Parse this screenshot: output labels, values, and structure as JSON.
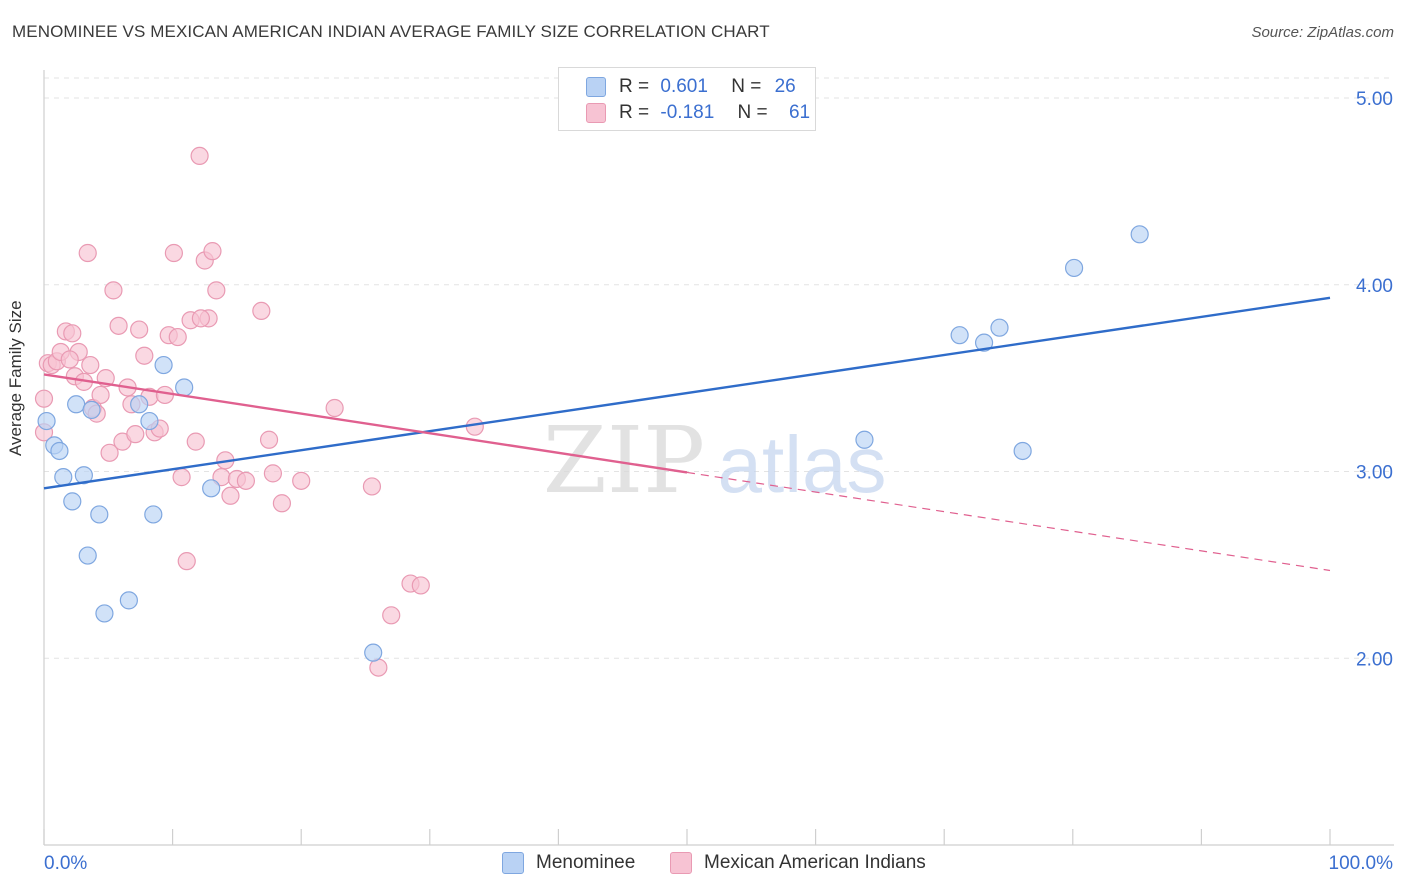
{
  "title": "MENOMINEE VS MEXICAN AMERICAN INDIAN AVERAGE FAMILY SIZE CORRELATION CHART",
  "source": "Source: ZipAtlas.com",
  "watermark": {
    "zip": "ZIP",
    "atlas": "atlas"
  },
  "colors": {
    "menominee_fill": "#b9d2f4",
    "menominee_stroke": "#7fa7e0",
    "menominee_line": "#2f6cc9",
    "mexican_fill": "#f7c3d3",
    "mexican_stroke": "#e99ab3",
    "mexican_line": "#e0608f",
    "tick_label": "#3b6fd0",
    "grid": "#e3e3e3"
  },
  "legend_top": {
    "rows": [
      {
        "r_label": "R =",
        "r_value": "0.601",
        "n_label": "N =",
        "n_value": "26"
      },
      {
        "r_label": "R =",
        "r_value": "-0.181",
        "n_label": "N =",
        "n_value": "61"
      }
    ]
  },
  "legend_bottom": [
    "Menominee",
    "Mexican American Indians"
  ],
  "chart_data": {
    "type": "scatter",
    "xlabel": "",
    "ylabel": "Average Family Size",
    "xlim": [
      0,
      100
    ],
    "ylim": [
      1.0,
      5.15
    ],
    "x_tick_labels": [
      "0.0%",
      "100.0%"
    ],
    "y_ticks": [
      2.0,
      3.0,
      4.0,
      5.0
    ],
    "y_tick_labels": [
      "2.00",
      "3.00",
      "4.00",
      "5.00"
    ],
    "grid": true,
    "series": [
      {
        "name": "Menominee",
        "trend": {
          "x0": 0,
          "y0": 2.91,
          "x1": 100,
          "y1": 3.93,
          "dashed_from": null
        },
        "points": [
          [
            0.2,
            3.27
          ],
          [
            0.8,
            3.14
          ],
          [
            1.2,
            3.11
          ],
          [
            1.5,
            2.97
          ],
          [
            2.2,
            2.84
          ],
          [
            2.5,
            3.36
          ],
          [
            3.1,
            2.98
          ],
          [
            3.4,
            2.55
          ],
          [
            3.7,
            3.33
          ],
          [
            4.3,
            2.77
          ],
          [
            4.7,
            2.24
          ],
          [
            6.6,
            2.31
          ],
          [
            7.4,
            3.36
          ],
          [
            8.2,
            3.27
          ],
          [
            8.5,
            2.77
          ],
          [
            9.3,
            3.57
          ],
          [
            10.9,
            3.45
          ],
          [
            13.0,
            2.91
          ],
          [
            25.6,
            2.03
          ],
          [
            63.8,
            3.17
          ],
          [
            71.2,
            3.73
          ],
          [
            73.1,
            3.69
          ],
          [
            74.3,
            3.77
          ],
          [
            76.1,
            3.11
          ],
          [
            80.1,
            4.09
          ],
          [
            85.2,
            4.27
          ]
        ]
      },
      {
        "name": "Mexican American Indians",
        "trend": {
          "x0": 0,
          "y0": 3.52,
          "x1": 100,
          "y1": 2.47,
          "dashed_from": 50
        },
        "points": [
          [
            0.0,
            3.21
          ],
          [
            0.0,
            3.39
          ],
          [
            0.3,
            3.58
          ],
          [
            0.6,
            3.57
          ],
          [
            1.0,
            3.59
          ],
          [
            1.3,
            3.64
          ],
          [
            1.7,
            3.75
          ],
          [
            2.2,
            3.74
          ],
          [
            2.4,
            3.51
          ],
          [
            2.7,
            3.64
          ],
          [
            3.1,
            3.48
          ],
          [
            3.4,
            4.17
          ],
          [
            3.6,
            3.57
          ],
          [
            3.8,
            3.34
          ],
          [
            4.1,
            3.31
          ],
          [
            4.4,
            3.41
          ],
          [
            4.8,
            3.5
          ],
          [
            5.1,
            3.1
          ],
          [
            5.4,
            3.97
          ],
          [
            5.8,
            3.78
          ],
          [
            6.1,
            3.16
          ],
          [
            6.5,
            3.45
          ],
          [
            6.8,
            3.36
          ],
          [
            7.1,
            3.2
          ],
          [
            7.4,
            3.76
          ],
          [
            7.8,
            3.62
          ],
          [
            8.2,
            3.4
          ],
          [
            8.6,
            3.21
          ],
          [
            9.0,
            3.23
          ],
          [
            9.4,
            3.41
          ],
          [
            9.7,
            3.73
          ],
          [
            10.1,
            4.17
          ],
          [
            10.4,
            3.72
          ],
          [
            10.7,
            2.97
          ],
          [
            11.1,
            2.52
          ],
          [
            11.4,
            3.81
          ],
          [
            11.8,
            3.16
          ],
          [
            12.1,
            4.69
          ],
          [
            12.5,
            4.13
          ],
          [
            12.8,
            3.82
          ],
          [
            13.1,
            4.18
          ],
          [
            13.4,
            3.97
          ],
          [
            13.8,
            2.97
          ],
          [
            14.1,
            3.06
          ],
          [
            14.5,
            2.87
          ],
          [
            15.0,
            2.96
          ],
          [
            15.7,
            2.95
          ],
          [
            16.9,
            3.86
          ],
          [
            17.5,
            3.17
          ],
          [
            17.8,
            2.99
          ],
          [
            18.5,
            2.83
          ],
          [
            20.0,
            2.95
          ],
          [
            22.6,
            3.34
          ],
          [
            25.5,
            2.92
          ],
          [
            26.0,
            1.95
          ],
          [
            27.0,
            2.23
          ],
          [
            28.5,
            2.4
          ],
          [
            29.3,
            2.39
          ],
          [
            33.5,
            3.24
          ],
          [
            2.0,
            3.6
          ],
          [
            12.2,
            3.82
          ]
        ]
      }
    ]
  }
}
